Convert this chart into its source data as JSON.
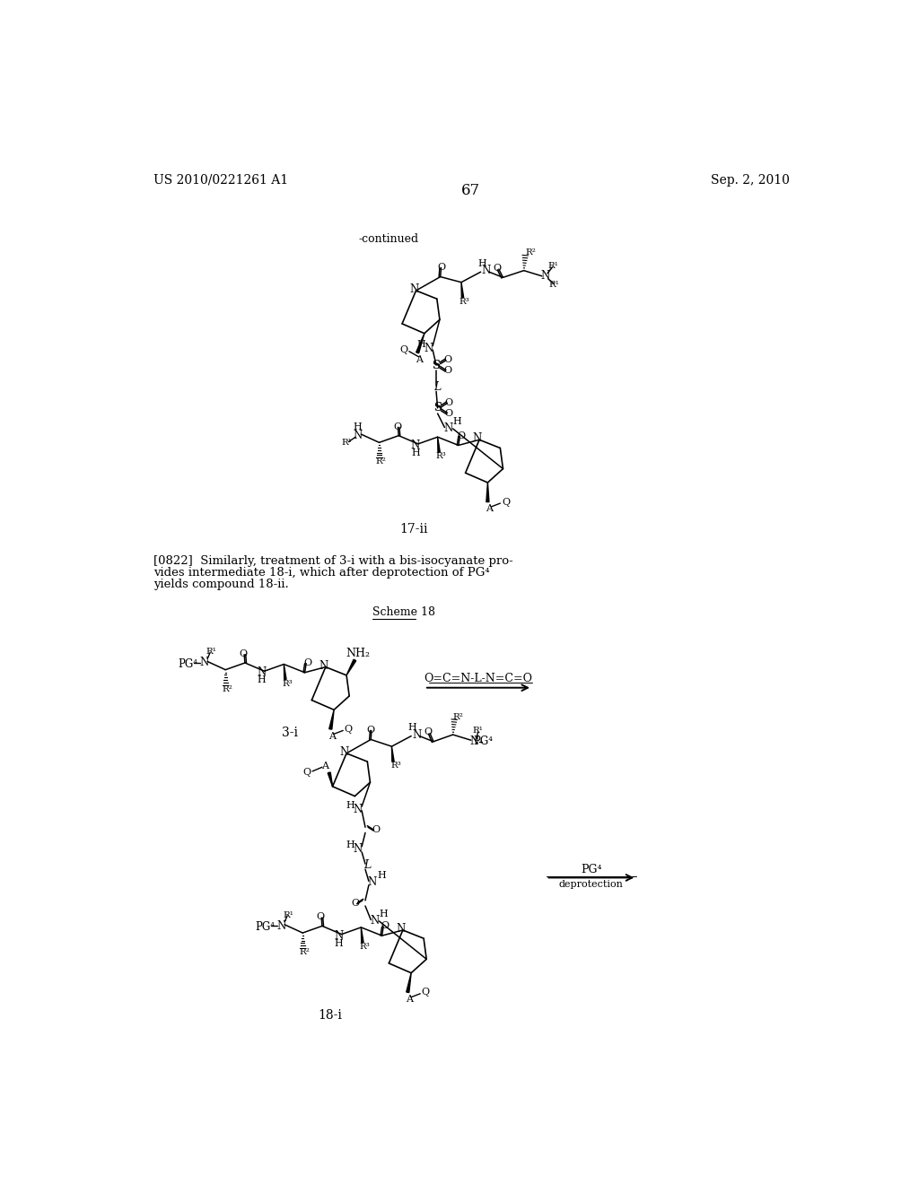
{
  "background_color": "#ffffff",
  "page_number": "67",
  "header_left": "US 2010/0221261 A1",
  "header_right": "Sep. 2, 2010"
}
